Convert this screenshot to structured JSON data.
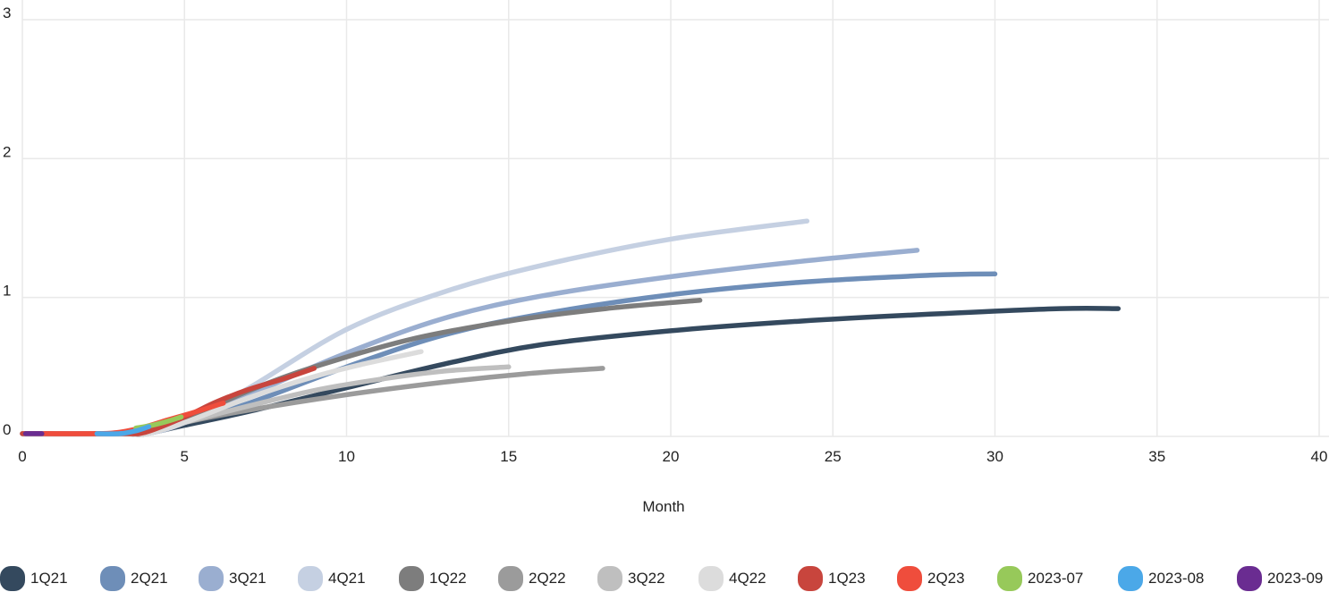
{
  "chart_data": {
    "type": "line",
    "title": "",
    "xlabel": "Month",
    "ylabel": "",
    "xlim": [
      0,
      40
    ],
    "ylim": [
      0,
      3
    ],
    "grid": true,
    "legend_position": "bottom",
    "x_ticks": [
      "0",
      "5",
      "10",
      "15",
      "20",
      "25",
      "30",
      "35",
      "40"
    ],
    "y_ticks": [
      "0",
      "1",
      "2",
      "3"
    ],
    "series": [
      {
        "name": "1Q21",
        "color": "#34495e",
        "x": [
          0,
          3,
          3.8,
          5,
          7,
          10,
          13,
          16,
          20,
          24,
          28,
          32,
          33.8
        ],
        "y": [
          0.02,
          0.02,
          0.02,
          0.08,
          0.18,
          0.35,
          0.52,
          0.66,
          0.76,
          0.83,
          0.88,
          0.92,
          0.92
        ]
      },
      {
        "name": "2Q21",
        "color": "#6e8eb8",
        "x": [
          0,
          3,
          3.8,
          5,
          7,
          10,
          13,
          16,
          20,
          24,
          28,
          30
        ],
        "y": [
          0.02,
          0.02,
          0.02,
          0.1,
          0.24,
          0.5,
          0.73,
          0.88,
          1.02,
          1.11,
          1.16,
          1.17
        ]
      },
      {
        "name": "3Q21",
        "color": "#9aaed0",
        "x": [
          0,
          3,
          3.8,
          5,
          7,
          10,
          13,
          16,
          20,
          24,
          27.6
        ],
        "y": [
          0.02,
          0.02,
          0.02,
          0.1,
          0.3,
          0.6,
          0.85,
          1.01,
          1.15,
          1.26,
          1.34
        ]
      },
      {
        "name": "4Q21",
        "color": "#c5d0e2",
        "x": [
          0,
          3,
          3.8,
          5,
          7,
          10,
          13,
          16,
          20,
          24.2
        ],
        "y": [
          0.02,
          0.02,
          0.02,
          0.1,
          0.35,
          0.77,
          1.04,
          1.23,
          1.42,
          1.55
        ]
      },
      {
        "name": "1Q22",
        "color": "#7d7d7d",
        "x": [
          0,
          3,
          3.8,
          5,
          7,
          9,
          12,
          15,
          18,
          20.9
        ],
        "y": [
          0.02,
          0.02,
          0.02,
          0.12,
          0.33,
          0.5,
          0.7,
          0.83,
          0.92,
          0.98
        ]
      },
      {
        "name": "2Q22",
        "color": "#9b9b9b",
        "x": [
          0,
          3,
          3.8,
          5,
          7,
          10,
          13,
          15.5,
          17.9
        ],
        "y": [
          0.02,
          0.02,
          0.02,
          0.1,
          0.19,
          0.3,
          0.39,
          0.45,
          0.49
        ]
      },
      {
        "name": "3Q22",
        "color": "#bfbfbf",
        "x": [
          0,
          3,
          3.8,
          5,
          7,
          9,
          11,
          13,
          15
        ],
        "y": [
          0.02,
          0.02,
          0.02,
          0.1,
          0.22,
          0.33,
          0.41,
          0.47,
          0.5
        ]
      },
      {
        "name": "4Q22",
        "color": "#dcdcdc",
        "x": [
          0,
          3,
          3.8,
          5,
          7,
          9,
          10.5,
          12.3
        ],
        "y": [
          0.02,
          0.02,
          0.02,
          0.1,
          0.28,
          0.43,
          0.52,
          0.61
        ]
      },
      {
        "name": "1Q23",
        "color": "#c8453d",
        "x": [
          0,
          3,
          3.8,
          5,
          6,
          7,
          8,
          9
        ],
        "y": [
          0.02,
          0.02,
          0.03,
          0.14,
          0.25,
          0.34,
          0.41,
          0.49
        ]
      },
      {
        "name": "2Q23",
        "color": "#ef4d3c",
        "x": [
          0.7,
          2.3,
          3,
          3.8,
          4.5,
          5.4,
          6.2
        ],
        "y": [
          0.02,
          0.02,
          0.03,
          0.07,
          0.12,
          0.18,
          0.24
        ]
      },
      {
        "name": "2023-07",
        "color": "#97c95a",
        "x": [
          3.5,
          4,
          4.5,
          4.9
        ],
        "y": [
          0.06,
          0.08,
          0.11,
          0.14
        ]
      },
      {
        "name": "2023-08",
        "color": "#4ba8e8",
        "x": [
          2.3,
          3,
          3.5,
          3.9
        ],
        "y": [
          0.02,
          0.02,
          0.04,
          0.07
        ]
      },
      {
        "name": "2023-09",
        "color": "#6a2c91",
        "x": [
          0.1,
          0.6
        ],
        "y": [
          0.02,
          0.02
        ]
      }
    ]
  }
}
